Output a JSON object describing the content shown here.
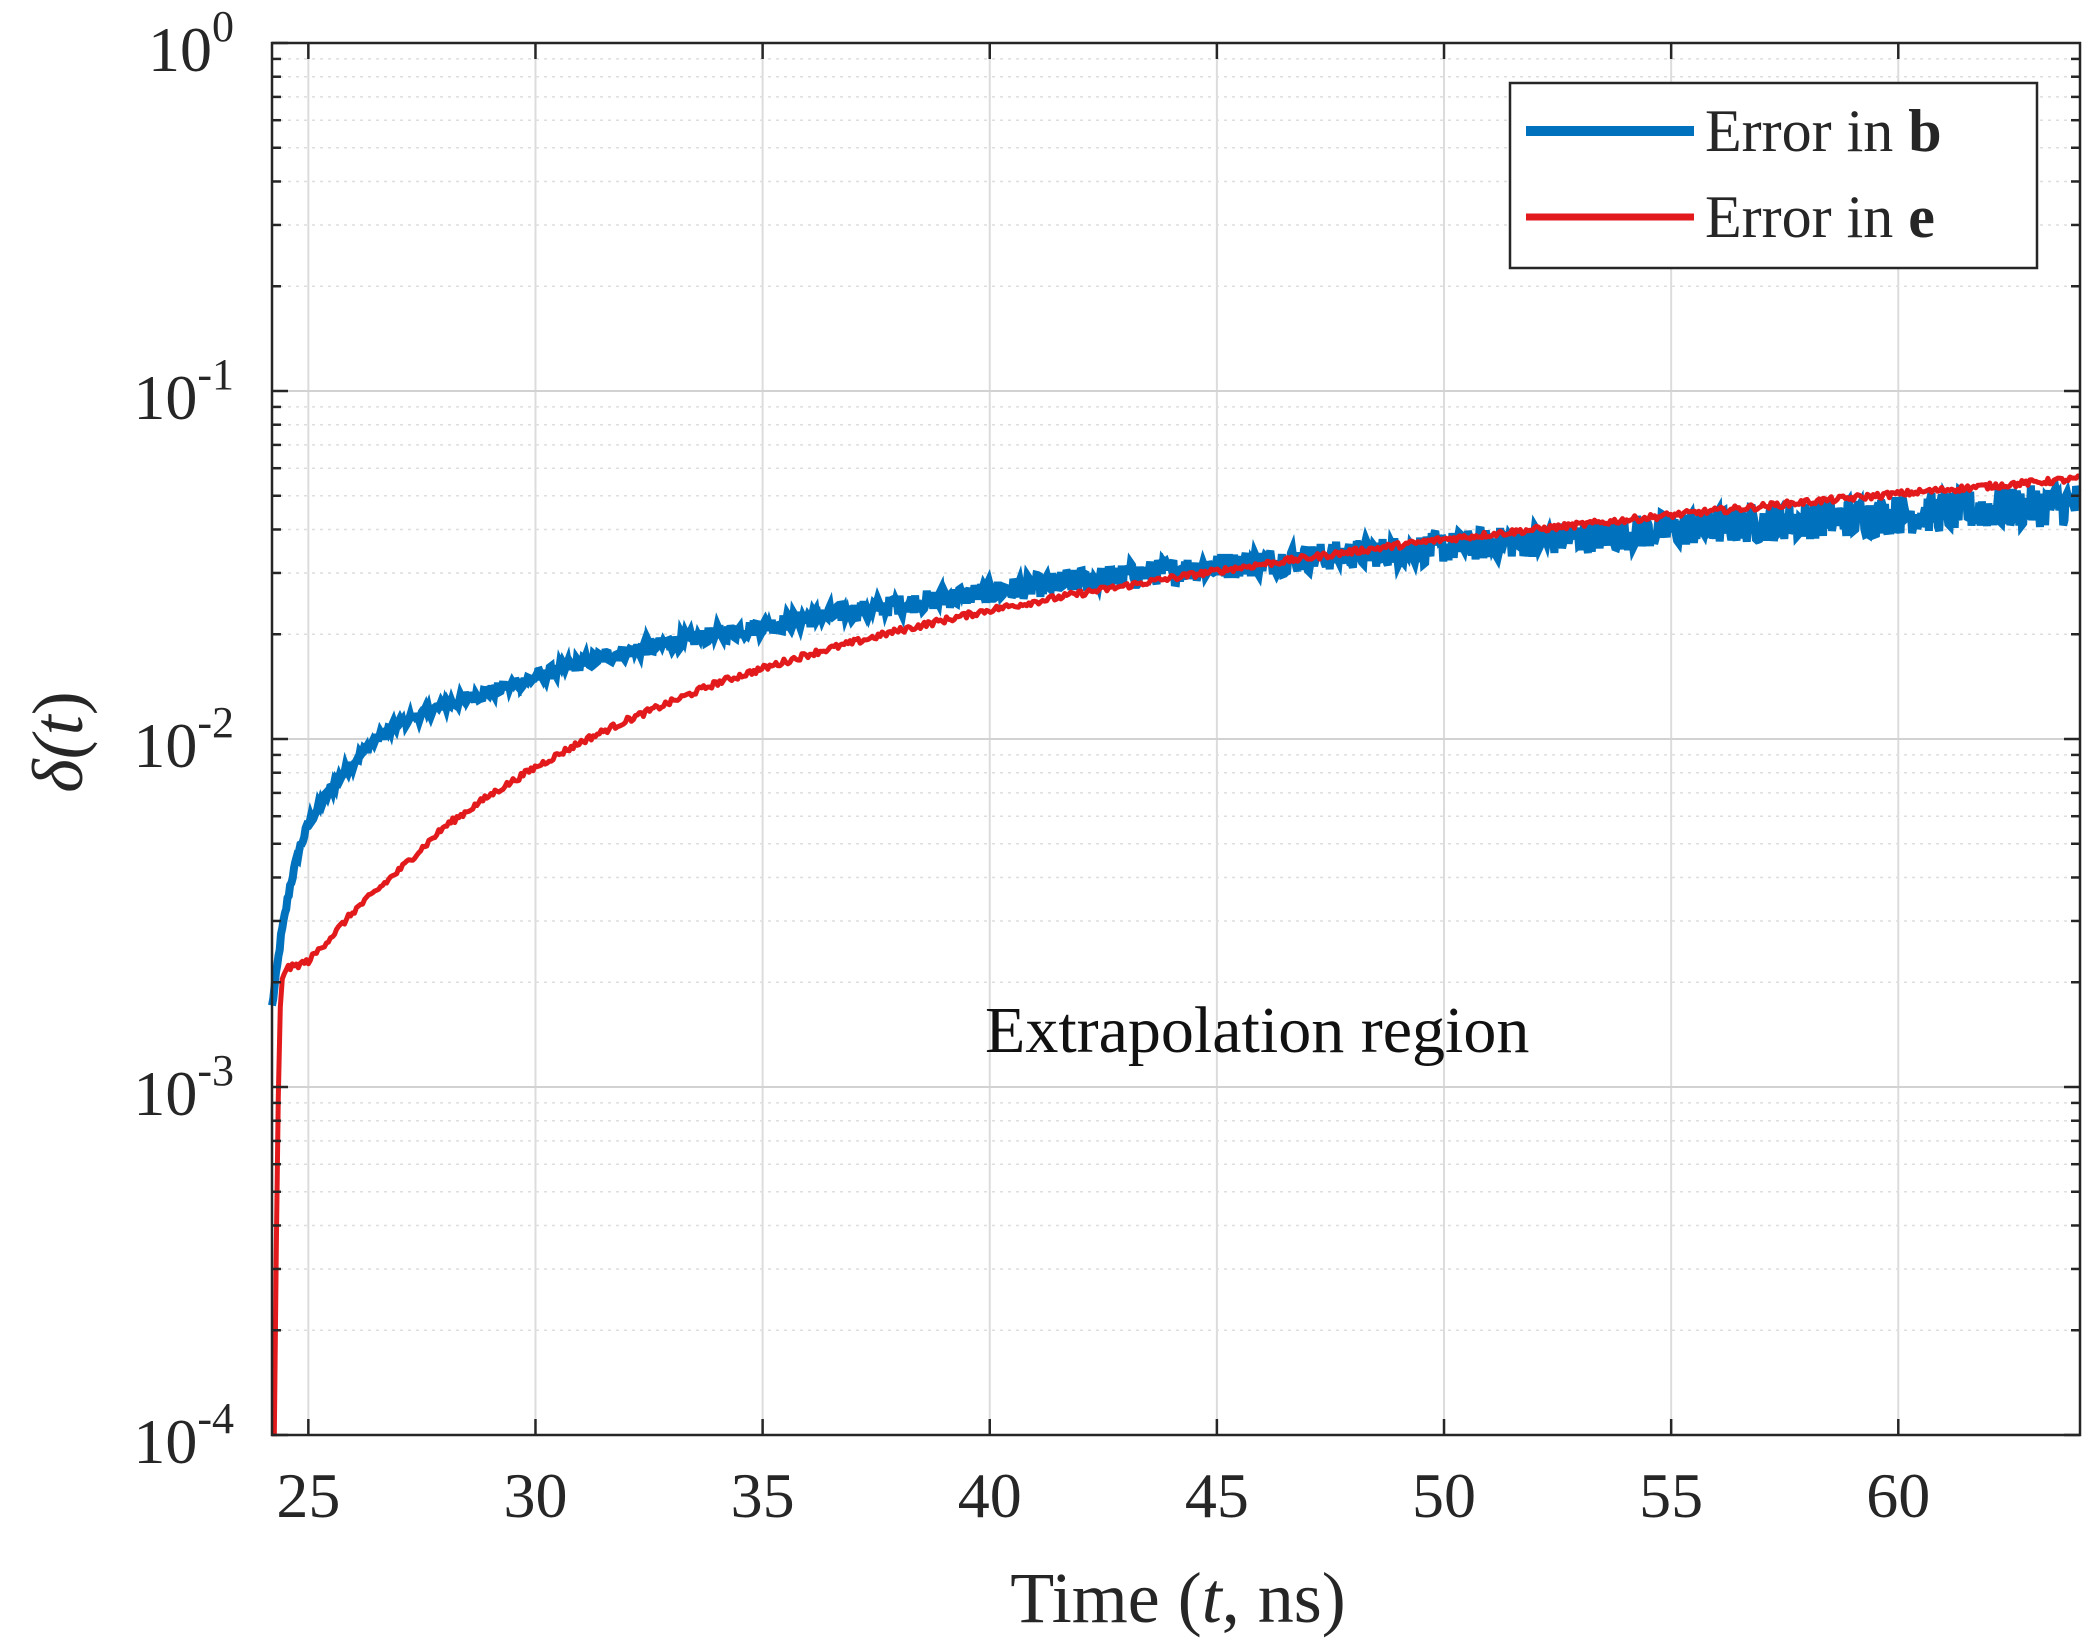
{
  "chart_data": {
    "type": "line",
    "title": "",
    "xlabel": {
      "main": "Time (",
      "var": "t",
      "rest": ", ns)"
    },
    "ylabel": {
      "symbol": "δ(",
      "var": "t",
      "close": ")"
    },
    "xlim": [
      24.2,
      64
    ],
    "ylim": [
      0.0001,
      1
    ],
    "yscale": "log",
    "grid": true,
    "x_ticks": [
      25,
      30,
      35,
      40,
      45,
      50,
      55,
      60
    ],
    "x_tick_labels": [
      "25",
      "30",
      "35",
      "40",
      "45",
      "50",
      "55",
      "60"
    ],
    "y_ticks": [
      0.0001,
      0.001,
      0.01,
      0.1,
      1
    ],
    "y_tick_labels": [
      {
        "base": "10",
        "exp": "-4"
      },
      {
        "base": "10",
        "exp": "-3"
      },
      {
        "base": "10",
        "exp": "-2"
      },
      {
        "base": "10",
        "exp": "-1"
      },
      {
        "base": "10",
        "exp": "0"
      }
    ],
    "legend": {
      "location": "top-right"
    },
    "annotation": "Extrapolation region",
    "series": [
      {
        "name": "Error in b",
        "legend_text": "Error in ",
        "legend_bold": "b",
        "color": "#0072BD",
        "style": "noisy-thick",
        "x": [
          24.2,
          24.4,
          24.6,
          24.8,
          25.0,
          25.3,
          25.6,
          26.0,
          26.5,
          27.0,
          28.0,
          29.0,
          30.0,
          31.0,
          32.0,
          34.0,
          36.0,
          38.0,
          40.0,
          42.0,
          44.0,
          46.0,
          48.0,
          50.0,
          52.0,
          55.0,
          58.0,
          61.0,
          64.0
        ],
        "y": [
          0.0017,
          0.0027,
          0.0038,
          0.0048,
          0.0057,
          0.0066,
          0.0075,
          0.0086,
          0.01,
          0.0111,
          0.0125,
          0.0137,
          0.015,
          0.0165,
          0.0178,
          0.02,
          0.0222,
          0.0243,
          0.0265,
          0.0285,
          0.0305,
          0.0322,
          0.034,
          0.0355,
          0.0372,
          0.04,
          0.0425,
          0.045,
          0.0475
        ]
      },
      {
        "name": "Error in e",
        "legend_text": "Error in ",
        "legend_bold": "e",
        "color": "#E31A1C",
        "style": "smooth",
        "x": [
          24.25,
          24.3,
          24.35,
          24.4,
          24.5,
          24.6,
          25.0,
          25.5,
          26.0,
          27.0,
          28.0,
          29.0,
          30.0,
          31.0,
          32.0,
          34.0,
          36.0,
          38.0,
          40.0,
          42.0,
          44.0,
          46.0,
          48.0,
          50.0,
          52.0,
          55.0,
          58.0,
          61.0,
          64.0
        ],
        "y": [
          0.0001,
          0.0004,
          0.0012,
          0.002,
          0.0022,
          0.0022,
          0.0023,
          0.0027,
          0.0032,
          0.0042,
          0.0056,
          0.0069,
          0.0083,
          0.0098,
          0.0113,
          0.0145,
          0.0175,
          0.0205,
          0.0235,
          0.0262,
          0.029,
          0.0318,
          0.0346,
          0.0375,
          0.04,
          0.044,
          0.048,
          0.052,
          0.056
        ]
      }
    ]
  }
}
